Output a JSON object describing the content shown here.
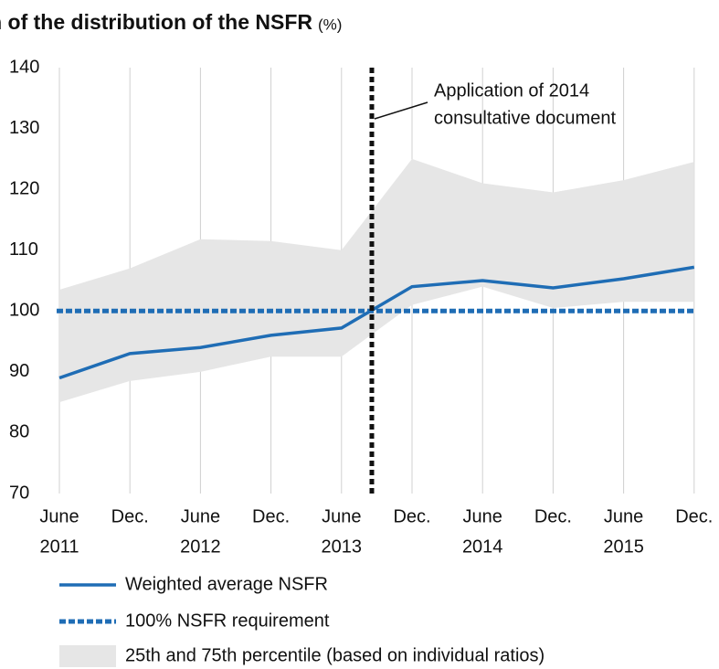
{
  "chart_data": {
    "type": "line",
    "title": "Evolution of the distribution of the NSFR",
    "unit": "(%)",
    "categories": [
      [
        "June",
        "2011"
      ],
      [
        "Dec."
      ],
      [
        "June",
        "2012"
      ],
      [
        "Dec."
      ],
      [
        "June",
        "2013"
      ],
      [
        "Dec."
      ],
      [
        "June",
        "2014"
      ],
      [
        "Dec."
      ],
      [
        "June",
        "2015"
      ],
      [
        "Dec."
      ]
    ],
    "ylim": [
      70,
      140
    ],
    "yticks": [
      70,
      80,
      90,
      100,
      110,
      120,
      130,
      140
    ],
    "grid": "vertical",
    "series": [
      {
        "name": "Weighted average NSFR",
        "color": "#1f6db5",
        "values": [
          89,
          93,
          94,
          96,
          97.2,
          104,
          105,
          103.8,
          105.3,
          107.2
        ]
      },
      {
        "name": "100% NSFR requirement",
        "color": "#1f6db5",
        "value": 100,
        "style": "dashed"
      }
    ],
    "band": {
      "name": "25th and 75th percentile (based on individual ratios)",
      "color": "#e6e6e6",
      "lower": [
        85,
        88.5,
        90,
        92.5,
        92.5,
        101,
        104,
        100.5,
        101.5,
        101.5
      ],
      "upper": [
        103.5,
        107,
        111.8,
        111.5,
        110,
        125,
        121,
        119.5,
        121.5,
        124.5
      ]
    },
    "annotation": [
      "Application of 2014",
      "consultative document"
    ]
  }
}
